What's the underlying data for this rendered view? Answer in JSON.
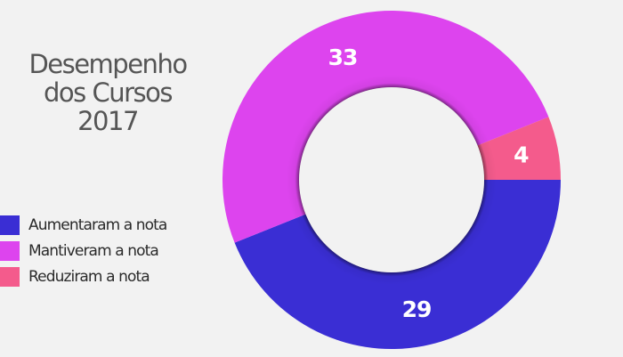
{
  "chart_data": {
    "type": "pie",
    "title": [
      "Desempenho",
      "dos Cursos",
      "2017"
    ],
    "categories": [
      "Aumentaram a nota",
      "Mantiveram a nota",
      "Reduziram a nota"
    ],
    "values": [
      29,
      33,
      4
    ],
    "value_labels": [
      "29",
      "33",
      "4"
    ],
    "colors": [
      "#3a2ed4",
      "#dd44ee",
      "#f45b8c"
    ],
    "donut": true,
    "legend_position": "left"
  }
}
